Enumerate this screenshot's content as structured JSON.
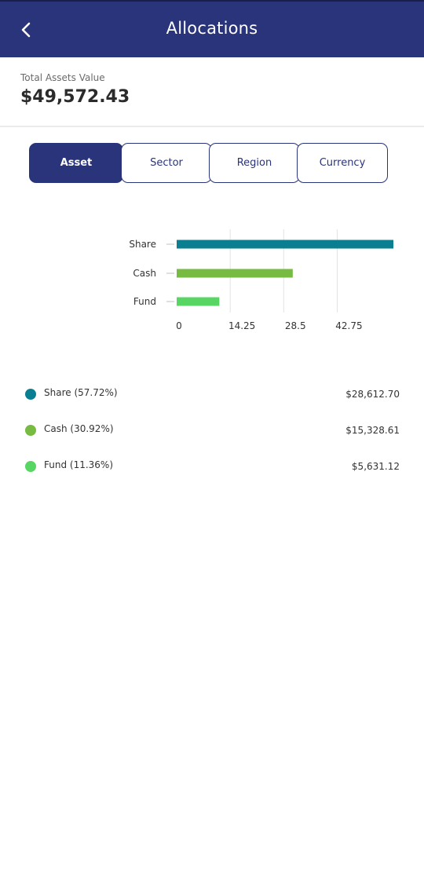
{
  "appbar": {
    "title": "Allocations",
    "back_icon": "chevron-left-icon"
  },
  "summary": {
    "label": "Total Assets Value",
    "value": "$49,572.43"
  },
  "tabs": [
    {
      "label": "Asset",
      "active": true
    },
    {
      "label": "Sector",
      "active": false
    },
    {
      "label": "Region",
      "active": false
    },
    {
      "label": "Currency",
      "active": false
    }
  ],
  "colors": {
    "primary": "#29347a",
    "share": "#0b7f92",
    "cash": "#77bb43",
    "fund": "#57d663"
  },
  "chart_data": {
    "type": "bar",
    "orientation": "horizontal",
    "categories": [
      "Share",
      "Cash",
      "Fund"
    ],
    "values": [
      57.72,
      30.92,
      11.36
    ],
    "colors": [
      "#0b7f92",
      "#77bb43",
      "#57d663"
    ],
    "xlim": [
      0,
      57.72
    ],
    "xticks": [
      "0",
      "14.25",
      "28.5",
      "42.75"
    ],
    "xtick_values": [
      0,
      14.25,
      28.5,
      42.75
    ],
    "grid": true
  },
  "legend": [
    {
      "label": "Share (57.72%)",
      "value": "$28,612.70",
      "color": "#0b7f92"
    },
    {
      "label": "Cash (30.92%)",
      "value": "$15,328.61",
      "color": "#77bb43"
    },
    {
      "label": "Fund (11.36%)",
      "value": "$5,631.12",
      "color": "#57d663"
    }
  ]
}
